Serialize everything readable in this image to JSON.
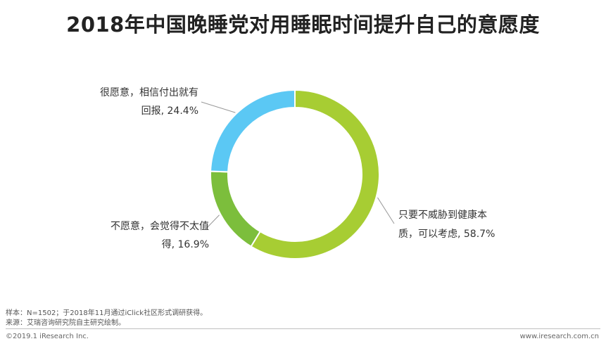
{
  "chart_data": {
    "type": "pie",
    "title": "2018年中国晚睡党对用睡眠时间提升自己的意愿度",
    "donut": true,
    "slices": [
      {
        "label_lines": [
          "只要不威胁到健康本",
          "质，可以考虑, 58.7%"
        ],
        "value": 58.7,
        "color": "#a7cd33"
      },
      {
        "label_lines": [
          "不愿意，会觉得不太值",
          "得, 16.9%"
        ],
        "value": 16.9,
        "color": "#7cbe3c"
      },
      {
        "label_lines": [
          "很愿意，相信付出就有",
          "回报, 24.4%"
        ],
        "value": 24.4,
        "color": "#5bc8f4"
      }
    ]
  },
  "notes": {
    "sample": "样本：N=1502；于2018年11月通过iClick社区形式调研获得。",
    "source": "来源：艾瑞咨询研究院自主研究绘制。"
  },
  "footer": {
    "copyright": "©2019.1 iResearch Inc.",
    "website": "www.iresearch.com.cn"
  }
}
